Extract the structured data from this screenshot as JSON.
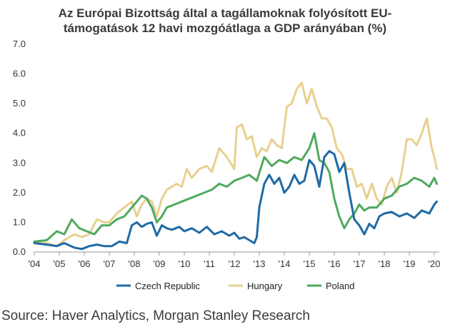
{
  "chart_data": {
    "type": "line",
    "title": "Az Európai Bizottság által a tagállamoknak folyósított EU-támogatások 12 havi mozgóátlaga a GDP arányában (%)",
    "xlabel": "",
    "ylabel": "",
    "ylim": [
      0,
      7
    ],
    "yticks": [
      "0.0",
      "1.0",
      "2.0",
      "3.0",
      "4.0",
      "5.0",
      "6.0",
      "7.0"
    ],
    "xlim": [
      2004,
      2020.2
    ],
    "xticks": [
      "'04",
      "'05",
      "'06",
      "'07",
      "'08",
      "'09",
      "'10",
      "'11",
      "'12",
      "'13",
      "'14",
      "'15",
      "'16",
      "'17",
      "'18",
      "'19",
      "'20"
    ],
    "grid": false,
    "legend_position": "bottom",
    "series": [
      {
        "name": "Czech Republic",
        "color": "#1f6aa5",
        "x": [
          2004.0,
          2004.5,
          2004.9,
          2005.2,
          2005.6,
          2005.9,
          2006.2,
          2006.5,
          2006.8,
          2007.1,
          2007.4,
          2007.7,
          2007.9,
          2008.1,
          2008.3,
          2008.5,
          2008.7,
          2008.9,
          2009.1,
          2009.3,
          2009.5,
          2009.8,
          2010.0,
          2010.3,
          2010.6,
          2010.9,
          2011.2,
          2011.5,
          2011.8,
          2012.0,
          2012.2,
          2012.4,
          2012.6,
          2012.8,
          2012.9,
          2013.0,
          2013.2,
          2013.4,
          2013.6,
          2013.8,
          2014.0,
          2014.2,
          2014.4,
          2014.6,
          2014.8,
          2015.0,
          2015.2,
          2015.4,
          2015.6,
          2015.8,
          2016.0,
          2016.2,
          2016.4,
          2016.6,
          2016.8,
          2017.0,
          2017.2,
          2017.4,
          2017.6,
          2017.8,
          2018.0,
          2018.3,
          2018.6,
          2018.9,
          2019.2,
          2019.5,
          2019.8,
          2020.0,
          2020.1
        ],
        "values": [
          0.3,
          0.25,
          0.2,
          0.3,
          0.15,
          0.1,
          0.2,
          0.25,
          0.2,
          0.2,
          0.35,
          0.3,
          0.9,
          1.0,
          0.85,
          0.95,
          1.0,
          0.55,
          0.9,
          0.8,
          0.75,
          0.85,
          0.7,
          0.8,
          0.65,
          0.85,
          0.6,
          0.7,
          0.55,
          0.65,
          0.45,
          0.5,
          0.4,
          0.3,
          0.5,
          1.5,
          2.3,
          2.6,
          2.3,
          2.5,
          2.0,
          2.2,
          2.6,
          2.3,
          2.4,
          3.1,
          2.9,
          2.2,
          3.2,
          3.4,
          3.3,
          2.7,
          3.0,
          2.0,
          1.1,
          0.9,
          0.6,
          0.95,
          0.8,
          1.2,
          1.3,
          1.35,
          1.2,
          1.3,
          1.15,
          1.4,
          1.3,
          1.6,
          1.7
        ]
      },
      {
        "name": "Hungary",
        "color": "#e8d08f",
        "x": [
          2004.0,
          2004.5,
          2004.9,
          2005.2,
          2005.6,
          2005.9,
          2006.2,
          2006.5,
          2006.8,
          2007.0,
          2007.3,
          2007.6,
          2007.9,
          2008.1,
          2008.3,
          2008.5,
          2008.7,
          2008.9,
          2009.1,
          2009.3,
          2009.5,
          2009.7,
          2009.9,
          2010.1,
          2010.3,
          2010.6,
          2010.9,
          2011.1,
          2011.4,
          2011.7,
          2012.0,
          2012.1,
          2012.3,
          2012.5,
          2012.7,
          2012.9,
          2013.1,
          2013.3,
          2013.5,
          2013.7,
          2013.9,
          2014.1,
          2014.3,
          2014.5,
          2014.7,
          2014.9,
          2015.1,
          2015.3,
          2015.5,
          2015.7,
          2015.9,
          2016.1,
          2016.3,
          2016.5,
          2016.7,
          2016.9,
          2017.1,
          2017.3,
          2017.5,
          2017.7,
          2017.9,
          2018.1,
          2018.3,
          2018.5,
          2018.7,
          2018.9,
          2019.1,
          2019.3,
          2019.5,
          2019.7,
          2019.9,
          2020.0,
          2020.1
        ],
        "values": [
          0.3,
          0.3,
          0.2,
          0.4,
          0.6,
          0.5,
          0.6,
          1.1,
          1.0,
          1.0,
          1.3,
          1.5,
          1.7,
          1.2,
          1.6,
          1.8,
          1.7,
          1.2,
          1.8,
          2.1,
          2.2,
          2.3,
          2.2,
          2.8,
          2.5,
          2.8,
          2.9,
          2.7,
          3.5,
          3.2,
          2.8,
          4.2,
          4.3,
          3.8,
          3.9,
          3.2,
          3.5,
          3.4,
          3.8,
          3.6,
          3.5,
          4.9,
          5.0,
          5.5,
          5.7,
          5.0,
          5.5,
          4.9,
          4.5,
          4.5,
          4.2,
          3.5,
          3.3,
          2.8,
          2.8,
          2.2,
          2.3,
          1.8,
          2.3,
          1.8,
          1.6,
          2.2,
          2.5,
          2.0,
          2.7,
          3.8,
          3.8,
          3.6,
          4.0,
          4.5,
          3.5,
          3.2,
          2.8
        ]
      },
      {
        "name": "Poland",
        "color": "#4faa5e",
        "x": [
          2004.0,
          2004.5,
          2004.9,
          2005.2,
          2005.5,
          2005.8,
          2006.1,
          2006.4,
          2006.7,
          2007.0,
          2007.3,
          2007.6,
          2007.9,
          2008.1,
          2008.3,
          2008.5,
          2008.7,
          2008.9,
          2009.1,
          2009.3,
          2009.6,
          2009.9,
          2010.2,
          2010.5,
          2010.8,
          2011.1,
          2011.4,
          2011.7,
          2012.0,
          2012.3,
          2012.6,
          2012.9,
          2013.2,
          2013.5,
          2013.8,
          2014.1,
          2014.4,
          2014.7,
          2015.0,
          2015.2,
          2015.4,
          2015.6,
          2015.8,
          2016.0,
          2016.2,
          2016.4,
          2016.6,
          2016.8,
          2017.0,
          2017.2,
          2017.4,
          2017.7,
          2018.0,
          2018.3,
          2018.6,
          2018.9,
          2019.2,
          2019.5,
          2019.8,
          2020.0,
          2020.1
        ],
        "values": [
          0.35,
          0.4,
          0.7,
          0.6,
          1.1,
          0.8,
          0.7,
          0.6,
          0.9,
          0.9,
          1.1,
          1.2,
          1.5,
          1.7,
          1.9,
          1.8,
          1.5,
          1.0,
          1.2,
          1.5,
          1.6,
          1.7,
          1.8,
          1.9,
          2.0,
          2.1,
          2.3,
          2.2,
          2.4,
          2.5,
          2.6,
          2.4,
          3.2,
          2.9,
          3.1,
          3.0,
          3.2,
          3.1,
          3.5,
          4.0,
          3.1,
          3.0,
          2.7,
          1.8,
          1.2,
          0.8,
          1.1,
          1.3,
          1.6,
          1.4,
          1.5,
          1.5,
          1.8,
          1.9,
          2.2,
          2.3,
          2.5,
          2.4,
          2.2,
          2.5,
          2.3
        ]
      }
    ]
  },
  "source": "Source: Haver Analytics, Morgan Stanley Research"
}
